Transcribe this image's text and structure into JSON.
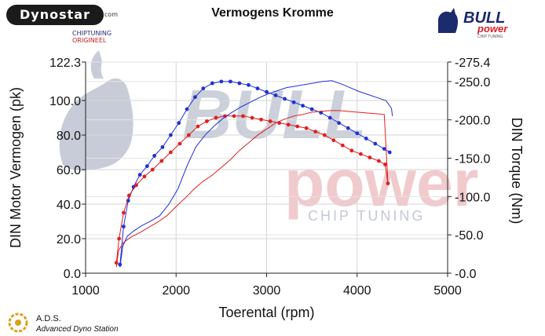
{
  "header": {
    "title": "Vermogens Kromme",
    "dynostar_logo": "Dynostar",
    "dynostar_suffix": ".com",
    "chiptuning_label": "CHIPTUNING",
    "origineel_label": "ORIGINEEL",
    "bull_logo": "BULL power",
    "bull_logo_sub": "CHIP TUNING"
  },
  "footer": {
    "ads_name": "A.D.S.",
    "ads_subtitle": "Advanced Dyno Station"
  },
  "watermark": {
    "line1": "BULL",
    "line2": "power",
    "line3": "CHIP TUNING"
  },
  "colors": {
    "chiptuning": "#1f2fd8",
    "origineel": "#e01f1f",
    "grid": "#d0d0d0",
    "watermark_blue": "#9aa3b8",
    "watermark_red": "#e8a8ac"
  },
  "chart_data": {
    "type": "line",
    "xlabel": "Toerental (rpm)",
    "ylabel": "DIN Motor Vermogen (pk)",
    "y2label": "DIN Torque (Nm)",
    "xlim": [
      1000,
      5000
    ],
    "ylim": [
      0.0,
      122.3
    ],
    "y2lim": [
      0.0,
      275.4
    ],
    "x_ticks": [
      "1000",
      "2000",
      "3000",
      "4000",
      "5000"
    ],
    "y_ticks": [
      "0.0",
      "20.0",
      "40.0",
      "60.0",
      "80.0",
      "100.0",
      "122.3"
    ],
    "y2_ticks": [
      "0.0",
      "50.0",
      "100.0",
      "150.0",
      "200.0",
      "250.0",
      "275.4"
    ],
    "grid": true,
    "series": [
      {
        "name": "CHIPTUNING",
        "axis": "power",
        "color": "#1f2fd8",
        "markers": true,
        "x": [
          1380,
          1420,
          1470,
          1530,
          1600,
          1680,
          1760,
          1850,
          1940,
          2030,
          2120,
          2210,
          2300,
          2400,
          2500,
          2600,
          2700,
          2800,
          2900,
          3000,
          3100,
          3200,
          3300,
          3400,
          3500,
          3600,
          3700,
          3800,
          3900,
          4000,
          4100,
          4200,
          4300,
          4360
        ],
        "y": [
          5,
          27,
          42,
          50,
          57,
          62,
          68,
          73,
          80,
          87,
          95,
          102,
          107,
          110,
          111,
          111,
          110,
          109,
          107,
          105,
          103,
          101,
          99,
          97,
          95,
          93,
          90,
          87,
          84,
          81,
          78,
          75,
          72,
          70
        ]
      },
      {
        "name": "ORIGINEEL",
        "axis": "power",
        "color": "#e01f1f",
        "markers": true,
        "x": [
          1340,
          1370,
          1420,
          1480,
          1560,
          1650,
          1740,
          1840,
          1940,
          2040,
          2140,
          2240,
          2340,
          2440,
          2540,
          2640,
          2740,
          2840,
          2940,
          3040,
          3140,
          3240,
          3340,
          3440,
          3540,
          3640,
          3740,
          3840,
          3940,
          4040,
          4140,
          4240,
          4310,
          4340
        ],
        "y": [
          6,
          20,
          35,
          45,
          51,
          56,
          60,
          65,
          70,
          75,
          80,
          85,
          88,
          90,
          91,
          91,
          91,
          90,
          89,
          88,
          87,
          86,
          85,
          84,
          82,
          80,
          77,
          74,
          71,
          69,
          67,
          65,
          63,
          52
        ]
      },
      {
        "name": "CHIPTUNING",
        "axis": "torque",
        "color": "#1f2fd8",
        "markers": false,
        "x": [
          1380,
          1410,
          1460,
          1530,
          1620,
          1720,
          1820,
          1920,
          2020,
          2120,
          2220,
          2320,
          2420,
          2520,
          2620,
          2720,
          2820,
          2920,
          3020,
          3120,
          3220,
          3320,
          3420,
          3520,
          3620,
          3720,
          3820,
          3920,
          4020,
          4120,
          4220,
          4320,
          4380,
          4390
        ],
        "y": [
          8,
          35,
          48,
          55,
          62,
          68,
          75,
          90,
          110,
          140,
          165,
          180,
          192,
          202,
          210,
          217,
          223,
          229,
          234,
          238,
          242,
          244,
          246,
          248,
          250,
          251,
          247,
          242,
          237,
          233,
          229,
          225,
          215,
          205
        ]
      },
      {
        "name": "ORIGINEEL",
        "axis": "torque",
        "color": "#e01f1f",
        "markers": false,
        "x": [
          1340,
          1365,
          1420,
          1500,
          1600,
          1700,
          1800,
          1900,
          2000,
          2100,
          2200,
          2300,
          2400,
          2500,
          2600,
          2700,
          2800,
          2900,
          3000,
          3100,
          3200,
          3300,
          3400,
          3500,
          3600,
          3700,
          3800,
          3900,
          4000,
          4100,
          4200,
          4300,
          4340
        ],
        "y": [
          8,
          30,
          40,
          47,
          53,
          60,
          67,
          75,
          87,
          98,
          110,
          120,
          128,
          138,
          148,
          160,
          170,
          180,
          188,
          196,
          201,
          205,
          207,
          210,
          211,
          212,
          212,
          211,
          210,
          209,
          208,
          207,
          120
        ]
      }
    ]
  }
}
